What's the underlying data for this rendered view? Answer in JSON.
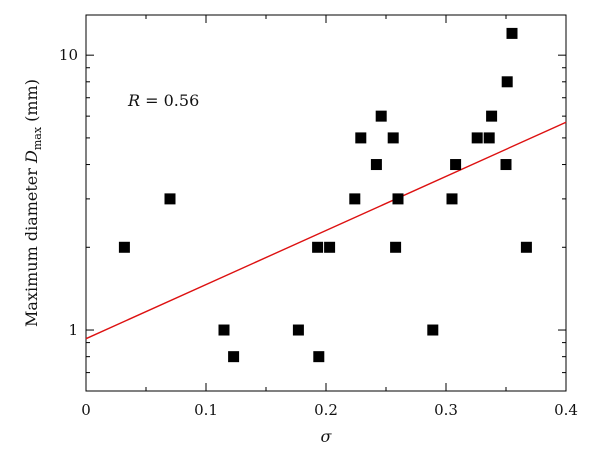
{
  "chart_data": {
    "type": "scatter",
    "title": "",
    "xlabel": "σ",
    "ylabel_main": "Maximum diameter ",
    "ylabel_symbol": "D",
    "ylabel_sub": "max",
    "ylabel_unit": " (mm)",
    "xlim": [
      0,
      0.4
    ],
    "ylim": [
      0.6,
      14
    ],
    "yscale": "log",
    "grid": false,
    "x_ticks": [
      "0",
      "0.1",
      "0.2",
      "0.3",
      "0.4"
    ],
    "y_ticks": [
      "1",
      "10"
    ],
    "annotation": {
      "symbol": "R",
      "value": " = 0.56"
    },
    "marker_color": "#000000",
    "fit_color": "#dd1111",
    "series": [
      {
        "marker": "square",
        "points": [
          {
            "x": 0.032,
            "y": 2
          },
          {
            "x": 0.07,
            "y": 3
          },
          {
            "x": 0.115,
            "y": 1
          },
          {
            "x": 0.123,
            "y": 0.8
          },
          {
            "x": 0.177,
            "y": 1
          },
          {
            "x": 0.193,
            "y": 2
          },
          {
            "x": 0.194,
            "y": 0.8
          },
          {
            "x": 0.203,
            "y": 2
          },
          {
            "x": 0.224,
            "y": 3
          },
          {
            "x": 0.229,
            "y": 5
          },
          {
            "x": 0.242,
            "y": 4
          },
          {
            "x": 0.246,
            "y": 6
          },
          {
            "x": 0.256,
            "y": 5
          },
          {
            "x": 0.258,
            "y": 2
          },
          {
            "x": 0.26,
            "y": 3
          },
          {
            "x": 0.289,
            "y": 1
          },
          {
            "x": 0.305,
            "y": 3
          },
          {
            "x": 0.308,
            "y": 4
          },
          {
            "x": 0.326,
            "y": 5
          },
          {
            "x": 0.336,
            "y": 5
          },
          {
            "x": 0.338,
            "y": 6
          },
          {
            "x": 0.35,
            "y": 4
          },
          {
            "x": 0.351,
            "y": 8
          },
          {
            "x": 0.355,
            "y": 12
          },
          {
            "x": 0.367,
            "y": 2
          }
        ]
      }
    ],
    "fit_line": {
      "x0": 0,
      "y0": 0.93,
      "x1": 0.4,
      "y1": 5.7
    }
  }
}
